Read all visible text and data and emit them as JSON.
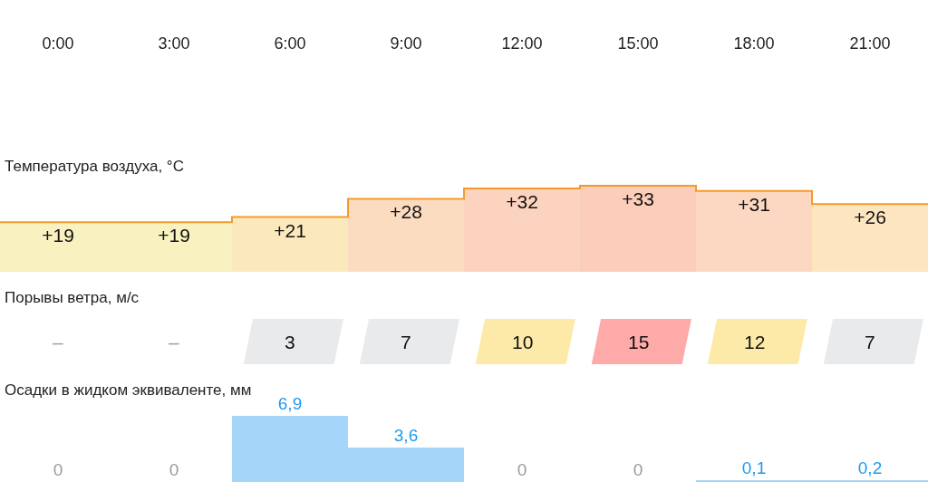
{
  "chart_data": [
    {
      "type": "bar",
      "title": "Температура воздуха, °C",
      "categories": [
        "0:00",
        "3:00",
        "6:00",
        "9:00",
        "12:00",
        "15:00",
        "18:00",
        "21:00"
      ],
      "values": [
        19,
        19,
        21,
        28,
        32,
        33,
        31,
        26
      ],
      "value_labels": [
        "+19",
        "+19",
        "+21",
        "+28",
        "+32",
        "+33",
        "+31",
        "+26"
      ],
      "colors": [
        "#f9f1bf",
        "#f9f1bf",
        "#fbe9bd",
        "#fcdcc0",
        "#fcd3bf",
        "#fccdb8",
        "#fcd8c2",
        "#fde5c0"
      ]
    },
    {
      "type": "other",
      "title": "Порывы ветра, м/с",
      "categories": [
        null,
        null,
        null,
        null,
        null,
        null,
        null,
        null
      ],
      "values": [
        null,
        null,
        3,
        7,
        10,
        15,
        12,
        7
      ],
      "value_labels": [
        "–",
        "–",
        "3",
        "7",
        "10",
        "15",
        "12",
        "7"
      ],
      "colors": [
        null,
        null,
        "#e9eaec",
        "#e9eaec",
        "#fdeaa8",
        "#fdaaa8",
        "#fdeaa8",
        "#e9eaec"
      ]
    },
    {
      "type": "bar",
      "title": "Осадки в жидком эквиваленте, мм",
      "categories": [
        null,
        null,
        null,
        null,
        null,
        null,
        null,
        null
      ],
      "values": [
        0,
        0,
        6.9,
        3.6,
        0,
        0,
        0.1,
        0.2
      ],
      "value_labels": [
        "0",
        "0",
        "6,9",
        "3,6",
        "0",
        "0",
        "0,1",
        "0,2"
      ],
      "color": "#a6d5fa"
    }
  ]
}
